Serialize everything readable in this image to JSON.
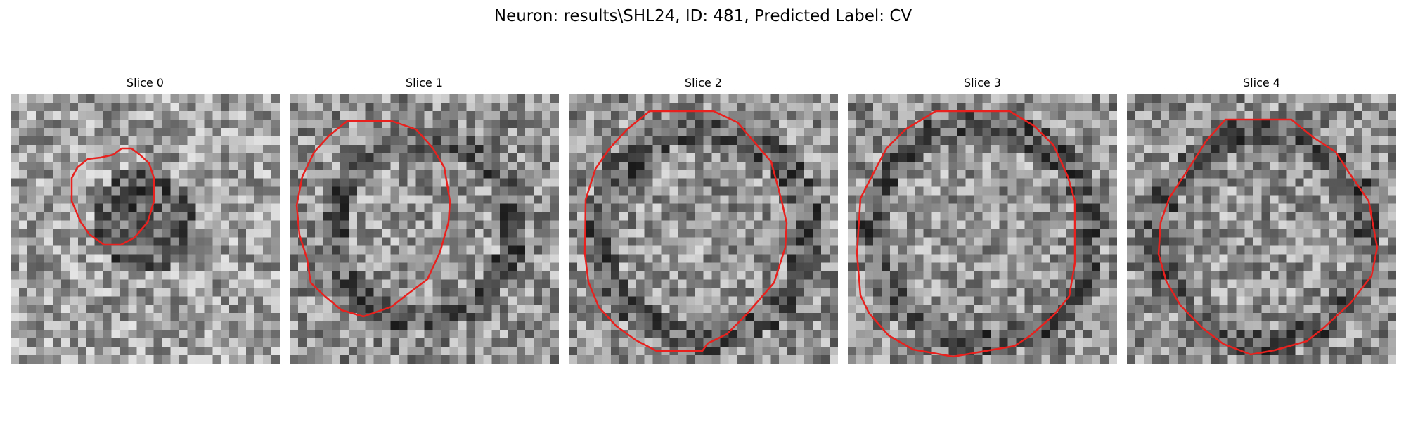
{
  "figure": {
    "title": "Neuron: results\\SHL24, ID: 481, Predicted Label: CV"
  },
  "colors": {
    "contour": "#e8211e",
    "pixel_dark": "#111111",
    "pixel_light": "#f2f2f2"
  },
  "slices": [
    {
      "title": "Slice 0"
    },
    {
      "title": "Slice 1"
    },
    {
      "title": "Slice 2"
    },
    {
      "title": "Slice 3"
    },
    {
      "title": "Slice 4"
    }
  ]
}
